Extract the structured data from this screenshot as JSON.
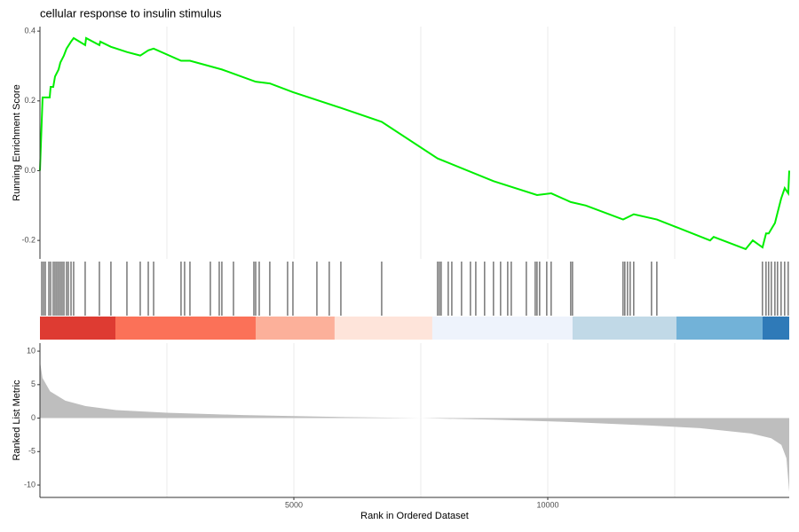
{
  "chart_data": [
    {
      "type": "line",
      "title": "cellular response to insulin stimulus",
      "ylabel": "Running Enrichment Score",
      "xlim": [
        0,
        14755
      ],
      "ylim": [
        -0.253,
        0.413
      ],
      "yticks": [
        0.4,
        0.2,
        {
          "value": 0,
          "label": "0.0"
        },
        -0.2
      ],
      "xgrid": [
        2500,
        5000,
        7500,
        10000,
        12500
      ],
      "series": [
        {
          "color": "#00ee00",
          "x": [
            0,
            52,
            192,
            210,
            262,
            297,
            367,
            402,
            472,
            524,
            612,
            664,
            891,
            909,
            1171,
            1188,
            1398,
            1713,
            1975,
            2133,
            2238,
            2779,
            2954,
            3583,
            4248,
            4527,
            4982,
            5926,
            6730,
            7831,
            8932,
            9789,
            10068,
            10453,
            10750,
            11484,
            11694,
            12149,
            13197,
            13267,
            13897,
            14037,
            14229,
            14299,
            14351,
            14474,
            14526,
            14596,
            14666,
            14736,
            14755
          ],
          "values": [
            0,
            0.21,
            0.21,
            0.24,
            0.24,
            0.27,
            0.29,
            0.31,
            0.33,
            0.35,
            0.37,
            0.38,
            0.36,
            0.38,
            0.36,
            0.37,
            0.355,
            0.34,
            0.33,
            0.345,
            0.35,
            0.315,
            0.315,
            0.29,
            0.255,
            0.25,
            0.225,
            0.18,
            0.14,
            0.035,
            -0.03,
            -0.07,
            -0.065,
            -0.09,
            -0.1,
            -0.14,
            -0.125,
            -0.14,
            -0.2,
            -0.19,
            -0.225,
            -0.2,
            -0.22,
            -0.18,
            -0.18,
            -0.15,
            -0.12,
            -0.08,
            -0.05,
            -0.065,
            0
          ]
        }
      ]
    },
    {
      "type": "rug",
      "xlim": [
        0,
        14755
      ],
      "hit_color": "#000000",
      "hits": [
        35,
        70,
        105,
        175,
        210,
        262,
        297,
        332,
        367,
        402,
        437,
        472,
        524,
        559,
        612,
        664,
        891,
        1171,
        1398,
        1713,
        1975,
        2133,
        2238,
        2779,
        2849,
        2954,
        3356,
        3531,
        3583,
        3811,
        4213,
        4248,
        4318,
        4527,
        4877,
        4982,
        5454,
        5698,
        5926,
        6730,
        7831,
        7866,
        7901,
        8041,
        8111,
        8303,
        8478,
        8583,
        8757,
        8932,
        9072,
        9212,
        9282,
        9579,
        9754,
        9789,
        9841,
        9981,
        10068,
        10453,
        10488,
        11484,
        11519,
        11572,
        11624,
        11694,
        12044,
        12149,
        14229,
        14299,
        14351,
        14404,
        14474,
        14526,
        14596,
        14666,
        14736
      ],
      "bands": [
        {
          "start": 0,
          "end": 1486,
          "color": "#de3b32"
        },
        {
          "start": 1486,
          "end": 4248,
          "color": "#fb7158"
        },
        {
          "start": 4248,
          "end": 5803,
          "color": "#fcb09a"
        },
        {
          "start": 5803,
          "end": 7726,
          "color": "#fee4da"
        },
        {
          "start": 7726,
          "end": 10488,
          "color": "#eef3fc"
        },
        {
          "start": 10488,
          "end": 12533,
          "color": "#c1d9e7"
        },
        {
          "start": 12533,
          "end": 14229,
          "color": "#72b2d8"
        },
        {
          "start": 14229,
          "end": 14755,
          "color": "#2f7ab8"
        }
      ]
    },
    {
      "type": "area",
      "ylabel": "Ranked List Metric",
      "xlabel": "Rank in Ordered Dataset",
      "xlim": [
        0,
        14755
      ],
      "ylim": [
        -11.85,
        11.2
      ],
      "yticks": [
        10,
        5,
        0,
        -5,
        -10
      ],
      "xticks": [
        5000,
        10000
      ],
      "xgrid": [
        2500,
        5000,
        7500,
        10000,
        12500
      ],
      "color": "#bebebe",
      "x": [
        0,
        50,
        200,
        500,
        900,
        1500,
        2500,
        4000,
        6000,
        7500,
        9000,
        10500,
        12000,
        13000,
        14000,
        14400,
        14600,
        14700,
        14755
      ],
      "values": [
        8.5,
        6,
        4,
        2.6,
        1.8,
        1.2,
        0.8,
        0.45,
        0.15,
        0,
        -0.25,
        -0.6,
        -1.1,
        -1.5,
        -2.3,
        -3,
        -4,
        -6,
        -11
      ]
    }
  ]
}
